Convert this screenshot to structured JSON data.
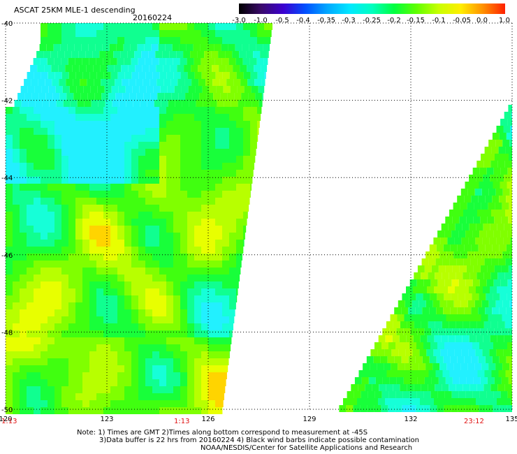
{
  "header": {
    "title": "ASCAT 25KM MLE-1 descending",
    "date": "20160224"
  },
  "colorbar": {
    "labels": [
      "-3.0",
      "-1.0",
      "-0.5",
      "-0.4",
      "-0.35",
      "-0.3",
      "-0.25",
      "-0.2",
      "-0.15",
      "-0.1",
      "-0.05",
      "0.0",
      "1.0"
    ],
    "colors": [
      "#000000",
      "#3a0a6a",
      "#3b00d0",
      "#0050ff",
      "#00a8ff",
      "#00e8ff",
      "#00ffc0",
      "#00ff40",
      "#60ff00",
      "#c8ff00",
      "#ffee00",
      "#ff9000",
      "#ff2000"
    ]
  },
  "axes": {
    "lat_labels": [
      "-40",
      "-42",
      "-44",
      "-46",
      "-48",
      "-50"
    ],
    "lon_labels": [
      "120",
      "123",
      "126",
      "129",
      "132",
      "135"
    ]
  },
  "times": {
    "t1": "1:13",
    "t2": "1:13",
    "t3": "23:12"
  },
  "notes": {
    "line1": "Note: 1) Times are GMT 2)Times along bottom correspond to measurement at -45S",
    "line2": "3)Data buffer is 22 hrs from 20160224 4) Black wind barbs indicate possible contamination",
    "line3": "NOAA/NESDIS/Center for Satellite Applications and Research"
  }
}
